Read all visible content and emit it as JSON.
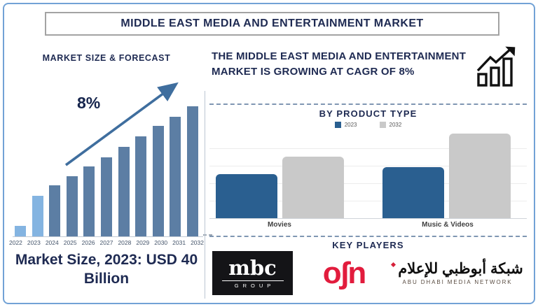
{
  "title": "MIDDLE EAST MEDIA AND ENTERTAINMENT MARKET",
  "left_panel": {
    "heading": "MARKET SIZE & FORECAST",
    "cagr_label": "8%",
    "market_size_note": "Market Size, 2023: USD 40 Billion"
  },
  "right_panel": {
    "headline": "THE MIDDLE EAST MEDIA AND ENTERTAINMENT MARKET IS GROWING AT CAGR OF 8%",
    "product_heading": "BY PRODUCT TYPE",
    "key_players_heading": "KEY PLAYERS",
    "players": [
      {
        "name": "MBC Group",
        "logo_text": "mbc",
        "logo_subtext": "GROUP"
      },
      {
        "name": "OSN",
        "logo_text": "oʃn"
      },
      {
        "name": "Abu Dhabi Media Network",
        "logo_text": "شبكة أبوظبي للإعلام",
        "logo_subtext": "ABU DHABI MEDIA NETWORK"
      }
    ]
  },
  "colors": {
    "navy_text": "#1e2a52",
    "forecast_bar": "#5c7ea4",
    "forecast_highlight": "#84b4e1",
    "trend_arrow": "#3f6e9e",
    "series_2023": "#2a5f90",
    "series_2032": "#c9c9c9",
    "osn_red": "#e21c3d",
    "frame_border": "#72a2d6"
  },
  "chart_data": [
    {
      "type": "bar",
      "title": "MARKET SIZE & FORECAST",
      "categories": [
        "2022",
        "2023",
        "2024",
        "2025",
        "2026",
        "2027",
        "2028",
        "2029",
        "2030",
        "2031",
        "2032"
      ],
      "values": [
        8,
        31,
        39,
        46,
        54,
        61,
        69,
        77,
        85,
        92,
        100
      ],
      "unit": "relative bar height, % of tallest bar (2032)",
      "annotation": "8% CAGR trend arrow; Market Size 2023 = USD 40 Billion",
      "highlight_categories": [
        "2022",
        "2023"
      ],
      "bar_color": "#5c7ea4",
      "highlight_color": "#84b4e1",
      "grid": false,
      "legend": "none",
      "xlabel": "",
      "ylabel": ""
    },
    {
      "type": "bar",
      "title": "BY PRODUCT TYPE",
      "categories": [
        "Movies",
        "Music & Videos"
      ],
      "series": [
        {
          "name": "2023",
          "color": "#2a5f90",
          "values": [
            52,
            60
          ]
        },
        {
          "name": "2032",
          "color": "#c9c9c9",
          "values": [
            73,
            100
          ]
        }
      ],
      "unit": "relative bar height, % of tallest bar",
      "grid": true,
      "legend_position": "top",
      "xlabel": "",
      "ylabel": ""
    }
  ]
}
